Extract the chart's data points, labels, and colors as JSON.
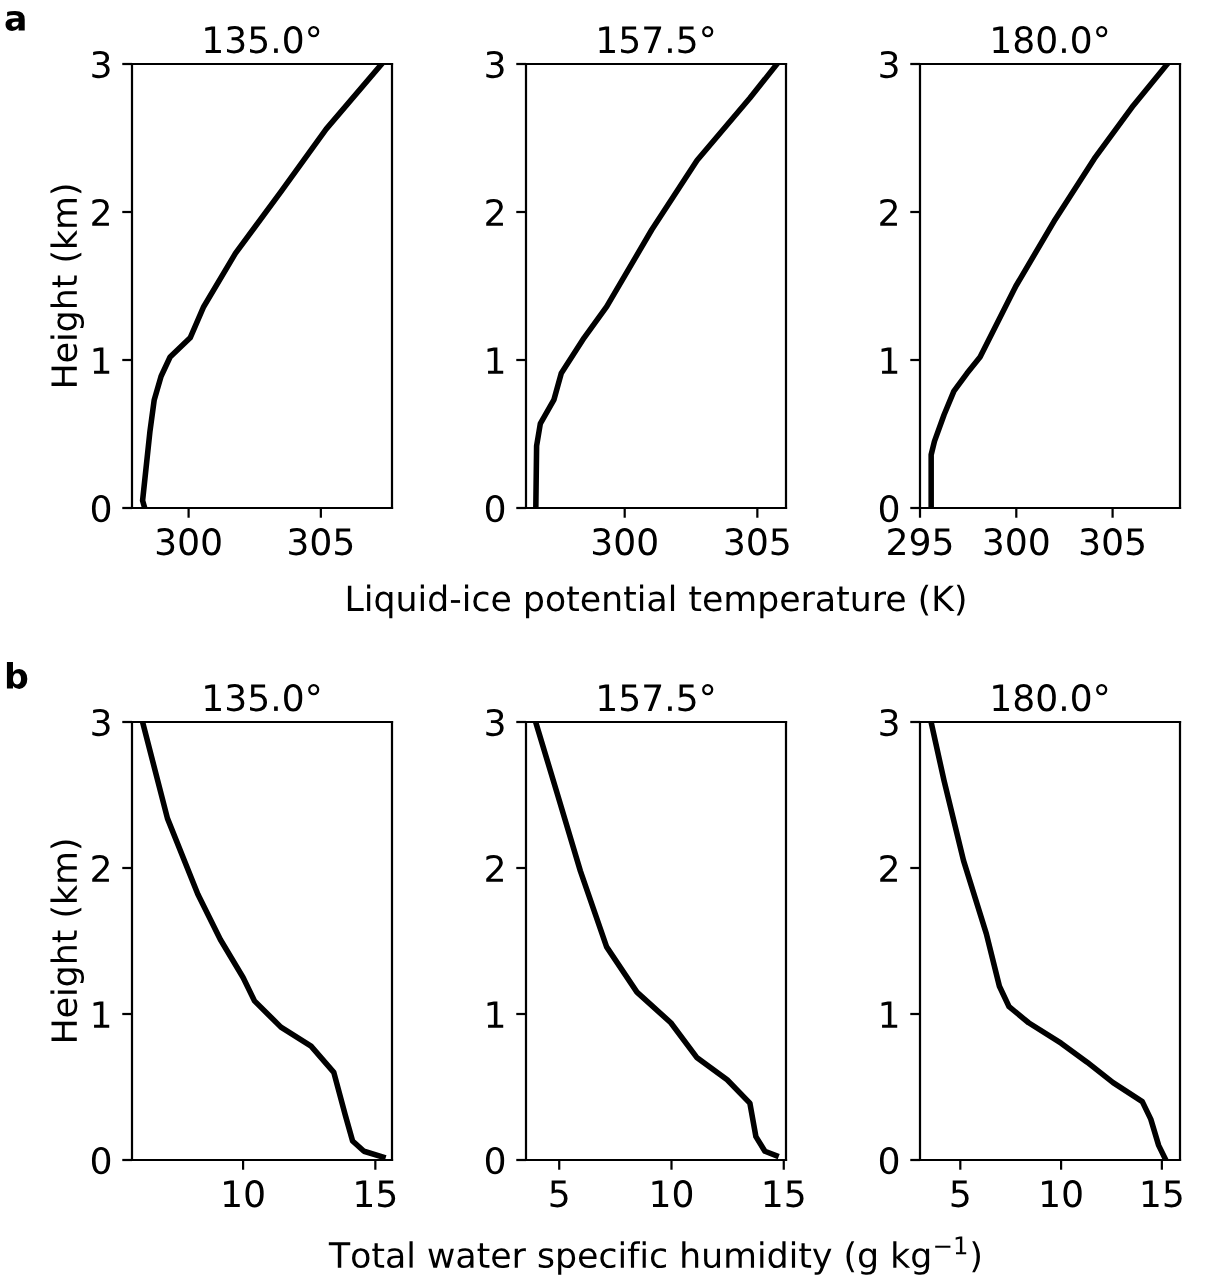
{
  "chart_data": [
    {
      "type": "line",
      "title": "135.0°",
      "ylabel": "Height (km)",
      "annotations": [
        "a"
      ],
      "xlim": [
        297.86,
        307.69
      ],
      "ylim": [
        0,
        3
      ],
      "xticks": [
        300,
        305
      ],
      "yticks": [
        0,
        1,
        2,
        3
      ],
      "grid": false,
      "legend": false,
      "series": [
        {
          "color": "#000000",
          "x": [
            298.34,
            298.26,
            298.54,
            298.7,
            298.96,
            299.3,
            300.06,
            300.57,
            301.77,
            303.5,
            305.2,
            307.3
          ],
          "values": [
            0,
            0.05,
            0.52,
            0.73,
            0.89,
            1.02,
            1.15,
            1.36,
            1.72,
            2.14,
            2.56,
            3
          ]
        }
      ]
    },
    {
      "type": "line",
      "title": "157.5°",
      "xlabel": "Liquid-ice potential temperature (K)",
      "xlim": [
        296.28,
        306.08
      ],
      "ylim": [
        0,
        3
      ],
      "xticks": [
        300,
        305
      ],
      "yticks": [
        0,
        1,
        2,
        3
      ],
      "grid": false,
      "legend": false,
      "series": [
        {
          "color": "#000000",
          "x": [
            296.65,
            296.68,
            296.82,
            297.33,
            297.61,
            298.47,
            299.32,
            301.02,
            302.73,
            304.72,
            305.74
          ],
          "values": [
            0,
            0.42,
            0.57,
            0.73,
            0.91,
            1.15,
            1.36,
            1.88,
            2.35,
            2.77,
            3
          ]
        }
      ]
    },
    {
      "type": "line",
      "title": "180.0°",
      "xlim": [
        295,
        308.5
      ],
      "ylim": [
        0,
        3
      ],
      "xticks": [
        295,
        300,
        305
      ],
      "yticks": [
        0,
        1,
        2,
        3
      ],
      "grid": false,
      "legend": false,
      "series": [
        {
          "color": "#000000",
          "x": [
            295.58,
            295.58,
            295.75,
            296.25,
            296.76,
            297.44,
            298.12,
            299.98,
            302.02,
            304.05,
            306.08,
            307.78
          ],
          "values": [
            0,
            0.36,
            0.45,
            0.63,
            0.79,
            0.91,
            1.02,
            1.5,
            1.95,
            2.36,
            2.72,
            2.99
          ]
        }
      ]
    },
    {
      "type": "line",
      "title": "135.0°",
      "ylabel": "Height (km)",
      "annotations": [
        "b"
      ],
      "xlim": [
        5.8,
        15.63
      ],
      "ylim": [
        0,
        3
      ],
      "xticks": [
        10,
        15
      ],
      "yticks": [
        0,
        1,
        2,
        3
      ],
      "grid": false,
      "legend": false,
      "series": [
        {
          "color": "#000000",
          "x": [
            6.2,
            7.14,
            8.29,
            9.14,
            10.0,
            10.43,
            11.43,
            12.57,
            13.43,
            13.86,
            14.14,
            14.57,
            15.29
          ],
          "values": [
            3,
            2.34,
            1.82,
            1.51,
            1.25,
            1.09,
            0.91,
            0.78,
            0.6,
            0.31,
            0.13,
            0.06,
            0.02
          ]
        }
      ]
    },
    {
      "type": "line",
      "title": "157.5°",
      "xlabel": "Total water specific humidity (g kg$^{−1}$)",
      "xlim": [
        3.52,
        15.1
      ],
      "ylim": [
        0,
        3
      ],
      "xticks": [
        5,
        10,
        15
      ],
      "yticks": [
        0,
        1,
        2,
        3
      ],
      "grid": false,
      "legend": false,
      "series": [
        {
          "color": "#000000",
          "x": [
            3.95,
            4.93,
            5.94,
            7.11,
            8.46,
            9.97,
            11.14,
            12.48,
            13.49,
            13.76,
            14.16,
            14.66
          ],
          "values": [
            3,
            2.5,
            1.98,
            1.46,
            1.15,
            0.94,
            0.7,
            0.55,
            0.39,
            0.16,
            0.06,
            0.03
          ]
        }
      ]
    },
    {
      "type": "line",
      "title": "180.0°",
      "xlim": [
        3.0,
        15.9
      ],
      "ylim": [
        0,
        3
      ],
      "xticks": [
        5,
        10,
        15
      ],
      "yticks": [
        0,
        1,
        2,
        3
      ],
      "grid": false,
      "legend": false,
      "series": [
        {
          "color": "#000000",
          "x": [
            3.55,
            4.19,
            5.16,
            6.29,
            6.94,
            7.42,
            8.39,
            10.0,
            11.29,
            12.58,
            14.03,
            14.45,
            14.84,
            15.16
          ],
          "values": [
            3,
            2.6,
            2.05,
            1.55,
            1.19,
            1.05,
            0.94,
            0.8,
            0.67,
            0.53,
            0.4,
            0.28,
            0.1,
            0.01
          ]
        }
      ]
    }
  ]
}
